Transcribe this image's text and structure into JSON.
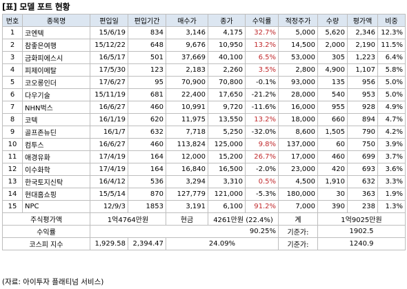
{
  "title": "[표] 모델 포트 현황",
  "columns": [
    "번호",
    "종목명",
    "편입일",
    "편입기간",
    "매수가",
    "종가",
    "수익률",
    "적정주가",
    "수량",
    "평가액",
    "비중"
  ],
  "rows": [
    {
      "no": "1",
      "name": "코엔텍",
      "date": "15/6/19",
      "period": "834",
      "buy": "3,146",
      "close": "4,175",
      "ret": "32.7%",
      "pos": true,
      "target": "5,000",
      "qty": "5,620",
      "value": "2,346",
      "weight": "12.3%"
    },
    {
      "no": "2",
      "name": "참좋은여행",
      "date": "15/12/22",
      "period": "648",
      "buy": "9,676",
      "close": "10,950",
      "ret": "13.2%",
      "pos": true,
      "target": "14,500",
      "qty": "2,000",
      "value": "2,190",
      "weight": "11.5%"
    },
    {
      "no": "3",
      "name": "금화피에스시",
      "date": "16/5/17",
      "period": "501",
      "buy": "37,669",
      "close": "40,100",
      "ret": "6.5%",
      "pos": true,
      "target": "53,000",
      "qty": "305",
      "value": "1,223",
      "weight": "6.4%"
    },
    {
      "no": "4",
      "name": "피제이메탈",
      "date": "17/5/30",
      "period": "123",
      "buy": "2,183",
      "close": "2,260",
      "ret": "3.5%",
      "pos": true,
      "target": "2,800",
      "qty": "4,900",
      "value": "1,107",
      "weight": "5.8%"
    },
    {
      "no": "5",
      "name": "코오롱인더",
      "date": "17/6/27",
      "period": "95",
      "buy": "70,900",
      "close": "70,800",
      "ret": "-0.1%",
      "pos": false,
      "target": "93,000",
      "qty": "135",
      "value": "956",
      "weight": "5.0%"
    },
    {
      "no": "6",
      "name": "다우기술",
      "date": "15/11/19",
      "period": "681",
      "buy": "22,400",
      "close": "17,650",
      "ret": "-21.2%",
      "pos": false,
      "target": "28,000",
      "qty": "540",
      "value": "953",
      "weight": "5.0%"
    },
    {
      "no": "7",
      "name": "NHN벅스",
      "date": "16/6/27",
      "period": "460",
      "buy": "10,991",
      "close": "9,720",
      "ret": "-11.6%",
      "pos": false,
      "target": "16,000",
      "qty": "955",
      "value": "928",
      "weight": "4.9%"
    },
    {
      "no": "8",
      "name": "코텍",
      "date": "16/1/19",
      "period": "620",
      "buy": "11,975",
      "close": "13,550",
      "ret": "13.2%",
      "pos": true,
      "target": "18,000",
      "qty": "660",
      "value": "894",
      "weight": "4.7%"
    },
    {
      "no": "9",
      "name": "골프존뉴딘",
      "date": "16/1/7",
      "period": "632",
      "buy": "7,718",
      "close": "5,250",
      "ret": "-32.0%",
      "pos": false,
      "target": "8,600",
      "qty": "1,505",
      "value": "790",
      "weight": "4.2%"
    },
    {
      "no": "10",
      "name": "컴투스",
      "date": "16/6/27",
      "period": "460",
      "buy": "113,824",
      "close": "125,000",
      "ret": "9.8%",
      "pos": true,
      "target": "137,000",
      "qty": "60",
      "value": "750",
      "weight": "3.9%"
    },
    {
      "no": "11",
      "name": "애경유화",
      "date": "17/4/19",
      "period": "164",
      "buy": "12,000",
      "close": "15,200",
      "ret": "26.7%",
      "pos": true,
      "target": "17,000",
      "qty": "460",
      "value": "699",
      "weight": "3.7%"
    },
    {
      "no": "12",
      "name": "이수화학",
      "date": "17/4/19",
      "period": "164",
      "buy": "16,840",
      "close": "16,500",
      "ret": "-2.0%",
      "pos": false,
      "target": "23,000",
      "qty": "420",
      "value": "693",
      "weight": "3.6%"
    },
    {
      "no": "13",
      "name": "한국토지신탁",
      "date": "16/4/12",
      "period": "536",
      "buy": "3,294",
      "close": "3,310",
      "ret": "0.5%",
      "pos": true,
      "target": "4,500",
      "qty": "1,910",
      "value": "632",
      "weight": "3.3%"
    },
    {
      "no": "14",
      "name": "현대홈쇼핑",
      "date": "15/5/14",
      "period": "870",
      "buy": "127,779",
      "close": "121,000",
      "ret": "-5.3%",
      "pos": false,
      "target": "180,000",
      "qty": "30",
      "value": "363",
      "weight": "1.9%"
    },
    {
      "no": "15",
      "name": "NPC",
      "date": "12/9/3",
      "period": "1853",
      "buy": "3,191",
      "close": "6,100",
      "ret": "91.2%",
      "pos": true,
      "target": "7,000",
      "qty": "390",
      "value": "238",
      "weight": "1.3%"
    }
  ],
  "summary": {
    "stock_value_label": "주식평가액",
    "stock_value": "1억4764만원",
    "cash_label": "현금",
    "cash_value": "4261만원 (22.4%)",
    "total_label": "계",
    "total_value": "1억9025만원",
    "return_label": "수익률",
    "return_value": "90.25%",
    "base_price_label1": "기준가:",
    "base_price_value1": "1902.5",
    "kospi_label": "코스피 지수",
    "kospi_start": "1,929.58",
    "kospi_now": "2,394.47",
    "kospi_change": "24.09%",
    "base_price_label2": "기준가:",
    "base_price_value2": "1240.9"
  },
  "source": "(자료: 아이투자 플래티넘 서비스)",
  "colors": {
    "header_bg": "#dce6f1",
    "positive_return": "#c0282b",
    "border": "#bdbdbd"
  }
}
